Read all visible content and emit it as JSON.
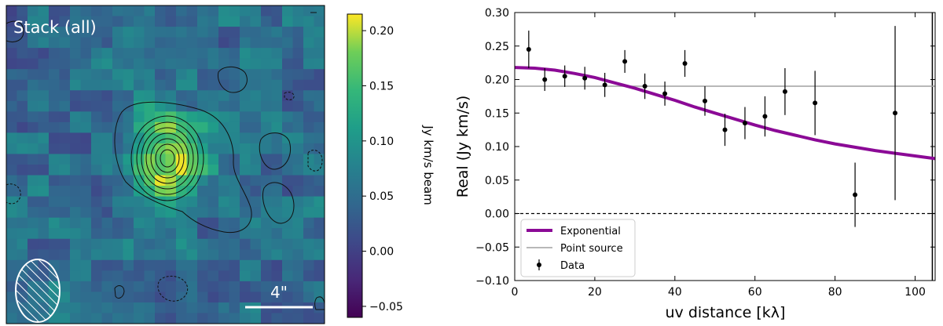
{
  "chart_data": [
    {
      "type": "heatmap",
      "panel_label": "Stack (all)",
      "scale_bar_label": "4\"",
      "colormap": "viridis",
      "colorbar": {
        "label": "Jy km/s beam",
        "vmin": -0.06,
        "vmax": 0.215,
        "ticks": [
          -0.05,
          0.0,
          0.05,
          0.1,
          0.15,
          0.2
        ],
        "tick_labels": [
          "−0.05",
          "0.00",
          "0.05",
          "0.10",
          "0.15",
          "0.20"
        ]
      },
      "peak_value": 0.21,
      "background_value": 0.05
    },
    {
      "type": "scatter",
      "xlabel": "uv distance [kλ]",
      "ylabel": "Real (Jy km/s)",
      "xlim": [
        0,
        105
      ],
      "ylim": [
        -0.1,
        0.3
      ],
      "xticks": [
        0,
        20,
        40,
        60,
        80,
        100
      ],
      "xtick_labels": [
        "0",
        "20",
        "40",
        "60",
        "80",
        "100"
      ],
      "yticks": [
        -0.1,
        -0.05,
        0.0,
        0.05,
        0.1,
        0.15,
        0.2,
        0.25,
        0.3
      ],
      "ytick_labels": [
        "−0.10",
        "−0.05",
        "0.00",
        "0.05",
        "0.10",
        "0.15",
        "0.20",
        "0.25",
        "0.30"
      ],
      "legend_position": "lower-left",
      "series": [
        {
          "name": "Exponential",
          "kind": "line",
          "color": "#8b0a96",
          "x": [
            0,
            5,
            10,
            15,
            20,
            25,
            30,
            35,
            40,
            45,
            50,
            55,
            60,
            65,
            70,
            75,
            80,
            85,
            90,
            95,
            100,
            105
          ],
          "y": [
            0.218,
            0.217,
            0.214,
            0.209,
            0.203,
            0.195,
            0.187,
            0.178,
            0.169,
            0.159,
            0.15,
            0.141,
            0.132,
            0.124,
            0.117,
            0.11,
            0.104,
            0.099,
            0.094,
            0.09,
            0.086,
            0.082
          ]
        },
        {
          "name": "Point source",
          "kind": "hline",
          "color": "#a0a0a0",
          "y": 0.19
        },
        {
          "name": "Data",
          "kind": "errorbar",
          "color": "#000000",
          "x": [
            3.5,
            7.5,
            12.5,
            17.5,
            22.5,
            27.5,
            32.5,
            37.5,
            42.5,
            47.5,
            52.5,
            57.5,
            62.5,
            67.5,
            75,
            85,
            95
          ],
          "y": [
            0.245,
            0.2,
            0.205,
            0.202,
            0.192,
            0.227,
            0.19,
            0.179,
            0.224,
            0.168,
            0.125,
            0.135,
            0.145,
            0.182,
            0.165,
            0.028,
            0.15
          ],
          "err": [
            0.028,
            0.017,
            0.016,
            0.017,
            0.018,
            0.017,
            0.019,
            0.018,
            0.02,
            0.022,
            0.024,
            0.024,
            0.03,
            0.035,
            0.048,
            0.048,
            0.13
          ]
        }
      ],
      "reference_line": {
        "y": 0.0,
        "style": "dashed"
      },
      "vertical_line": {
        "x": 104.3
      }
    }
  ]
}
